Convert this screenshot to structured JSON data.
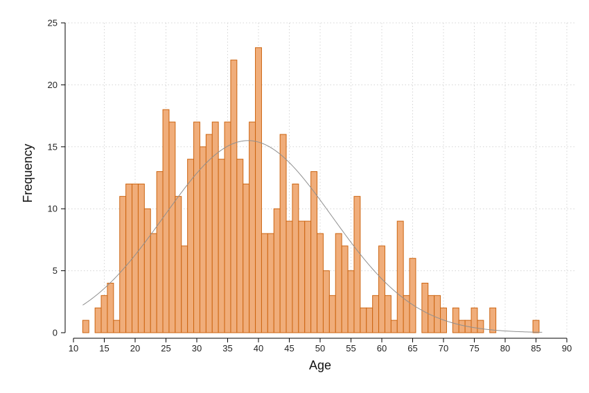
{
  "chart_data": {
    "type": "bar",
    "subtype": "histogram-with-normal-curve",
    "xlabel": "Age",
    "ylabel": "Frequency",
    "xlim": [
      10,
      90
    ],
    "ylim": [
      0,
      25
    ],
    "xticks": [
      10,
      15,
      20,
      25,
      30,
      35,
      40,
      45,
      50,
      55,
      60,
      65,
      70,
      75,
      80,
      85,
      90
    ],
    "yticks": [
      0,
      5,
      10,
      15,
      20,
      25
    ],
    "grid": true,
    "bin_width": 1,
    "bins": [
      {
        "x": 12,
        "count": 1
      },
      {
        "x": 14,
        "count": 2
      },
      {
        "x": 15,
        "count": 3
      },
      {
        "x": 16,
        "count": 4
      },
      {
        "x": 17,
        "count": 1
      },
      {
        "x": 18,
        "count": 11
      },
      {
        "x": 19,
        "count": 12
      },
      {
        "x": 20,
        "count": 12
      },
      {
        "x": 21,
        "count": 12
      },
      {
        "x": 22,
        "count": 10
      },
      {
        "x": 23,
        "count": 8
      },
      {
        "x": 24,
        "count": 13
      },
      {
        "x": 25,
        "count": 18
      },
      {
        "x": 26,
        "count": 17
      },
      {
        "x": 27,
        "count": 11
      },
      {
        "x": 28,
        "count": 7
      },
      {
        "x": 29,
        "count": 14
      },
      {
        "x": 30,
        "count": 17
      },
      {
        "x": 31,
        "count": 15
      },
      {
        "x": 32,
        "count": 16
      },
      {
        "x": 33,
        "count": 17
      },
      {
        "x": 34,
        "count": 14
      },
      {
        "x": 35,
        "count": 17
      },
      {
        "x": 36,
        "count": 22
      },
      {
        "x": 37,
        "count": 14
      },
      {
        "x": 38,
        "count": 12
      },
      {
        "x": 39,
        "count": 17
      },
      {
        "x": 40,
        "count": 23
      },
      {
        "x": 41,
        "count": 8
      },
      {
        "x": 42,
        "count": 8
      },
      {
        "x": 43,
        "count": 10
      },
      {
        "x": 44,
        "count": 16
      },
      {
        "x": 45,
        "count": 9
      },
      {
        "x": 46,
        "count": 12
      },
      {
        "x": 47,
        "count": 9
      },
      {
        "x": 48,
        "count": 9
      },
      {
        "x": 49,
        "count": 13
      },
      {
        "x": 50,
        "count": 8
      },
      {
        "x": 51,
        "count": 5
      },
      {
        "x": 52,
        "count": 3
      },
      {
        "x": 53,
        "count": 8
      },
      {
        "x": 54,
        "count": 7
      },
      {
        "x": 55,
        "count": 5
      },
      {
        "x": 56,
        "count": 11
      },
      {
        "x": 57,
        "count": 2
      },
      {
        "x": 58,
        "count": 2
      },
      {
        "x": 59,
        "count": 3
      },
      {
        "x": 60,
        "count": 7
      },
      {
        "x": 61,
        "count": 3
      },
      {
        "x": 62,
        "count": 1
      },
      {
        "x": 63,
        "count": 9
      },
      {
        "x": 64,
        "count": 3
      },
      {
        "x": 65,
        "count": 6
      },
      {
        "x": 67,
        "count": 4
      },
      {
        "x": 68,
        "count": 3
      },
      {
        "x": 69,
        "count": 3
      },
      {
        "x": 70,
        "count": 2
      },
      {
        "x": 72,
        "count": 2
      },
      {
        "x": 73,
        "count": 1
      },
      {
        "x": 74,
        "count": 1
      },
      {
        "x": 75,
        "count": 2
      },
      {
        "x": 76,
        "count": 1
      },
      {
        "x": 78,
        "count": 2
      },
      {
        "x": 85,
        "count": 1
      }
    ],
    "normal_curve": {
      "mean": 38.3,
      "peak": 15.5,
      "sd": 13.6,
      "x_range": [
        11.5,
        86
      ]
    },
    "colors": {
      "bar_fill": "#f0ad7a",
      "bar_stroke": "#cc6410",
      "curve": "#8f8f8f",
      "grid": "#d4d4d4"
    }
  }
}
